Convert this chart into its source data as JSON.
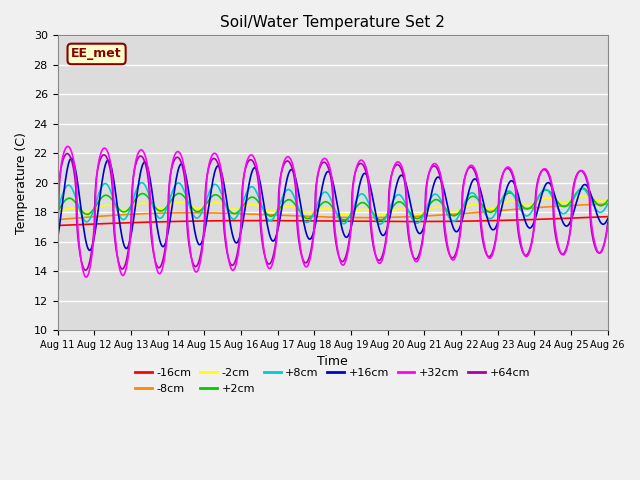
{
  "title": "Soil/Water Temperature Set 2",
  "xlabel": "Time",
  "ylabel": "Temperature (C)",
  "ylim": [
    10,
    30
  ],
  "xlim": [
    0,
    15
  ],
  "annotation": "EE_met",
  "plot_bg_color": "#dcdcdc",
  "fig_bg_color": "#f0f0f0",
  "x_tick_labels": [
    "Aug 11",
    "Aug 12",
    "Aug 13",
    "Aug 14",
    "Aug 15",
    "Aug 16",
    "Aug 17",
    "Aug 18",
    "Aug 19",
    "Aug 20",
    "Aug 21",
    "Aug 22",
    "Aug 23",
    "Aug 24",
    "Aug 25",
    "Aug 26"
  ],
  "series": {
    "-16cm": {
      "color": "#ff0000",
      "lw": 1.2
    },
    "-8cm": {
      "color": "#ff8800",
      "lw": 1.2
    },
    "-2cm": {
      "color": "#ffff00",
      "lw": 1.2
    },
    "+2cm": {
      "color": "#00cc00",
      "lw": 1.2
    },
    "+8cm": {
      "color": "#00cccc",
      "lw": 1.2
    },
    "+16cm": {
      "color": "#0000cc",
      "lw": 1.2
    },
    "+32cm": {
      "color": "#ff00ff",
      "lw": 1.2
    },
    "+64cm": {
      "color": "#aa00aa",
      "lw": 1.2
    }
  },
  "legend_order": [
    "-16cm",
    "-8cm",
    "-2cm",
    "+2cm",
    "+8cm",
    "+16cm",
    "+32cm",
    "+64cm"
  ]
}
